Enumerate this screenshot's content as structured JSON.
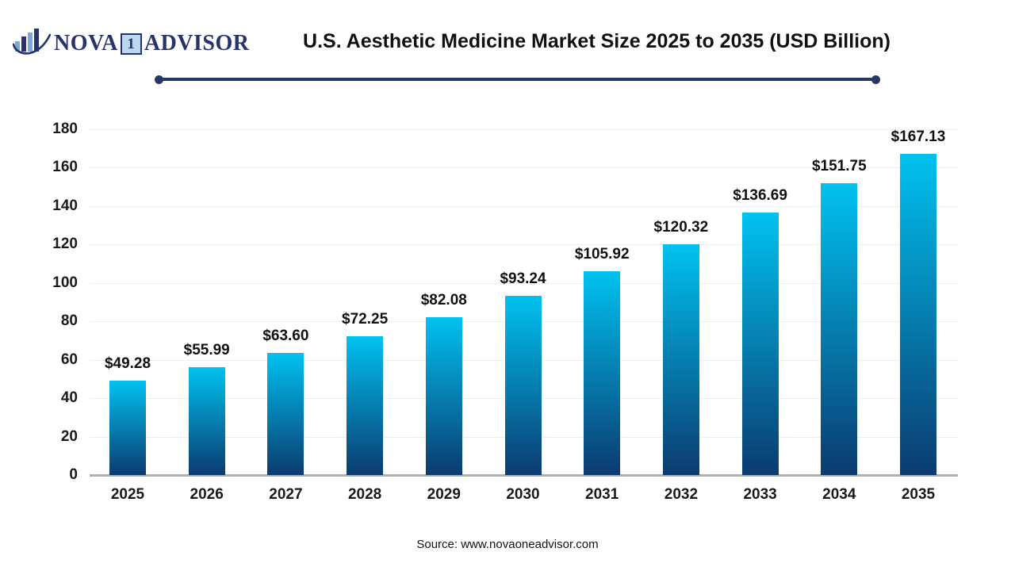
{
  "logo": {
    "part_nova": "NOVA",
    "part_one": "1",
    "part_advisor": "ADVISOR"
  },
  "header": {
    "title": "U.S. Aesthetic Medicine Market Size 2025 to 2035 (USD Billion)"
  },
  "footer": {
    "source": "Source: www.novaoneadvisor.com"
  },
  "colors": {
    "accent_navy": "#27336a",
    "rule_navy": "#253765",
    "bar_top": "#00c2f0",
    "bar_bottom": "#0b3b70",
    "gridline": "#ededed",
    "axis_line": "#b0b0b0",
    "logo_light_blue": "#7da7d9",
    "one_box_fill": "#bdd7ee"
  },
  "chart_data": {
    "type": "bar",
    "title": "U.S. Aesthetic Medicine Market Size 2025 to 2035 (USD Billion)",
    "categories": [
      "2025",
      "2026",
      "2027",
      "2028",
      "2029",
      "2030",
      "2031",
      "2032",
      "2033",
      "2034",
      "2035"
    ],
    "values": [
      49.28,
      55.99,
      63.6,
      72.25,
      82.08,
      93.24,
      105.92,
      120.32,
      136.69,
      151.75,
      167.13
    ],
    "value_labels": [
      "$49.28",
      "$55.99",
      "$63.60",
      "$72.25",
      "$82.08",
      "$93.24",
      "$105.92",
      "$120.32",
      "$136.69",
      "$151.75",
      "$167.13"
    ],
    "xlabel": "",
    "ylabel": "",
    "ylim": [
      0,
      180
    ],
    "yticks": [
      0,
      20,
      40,
      60,
      80,
      100,
      120,
      140,
      160,
      180
    ],
    "grid": true,
    "legend": "none",
    "bar_gradient": [
      "#00c2f0",
      "#0b3b70"
    ]
  }
}
